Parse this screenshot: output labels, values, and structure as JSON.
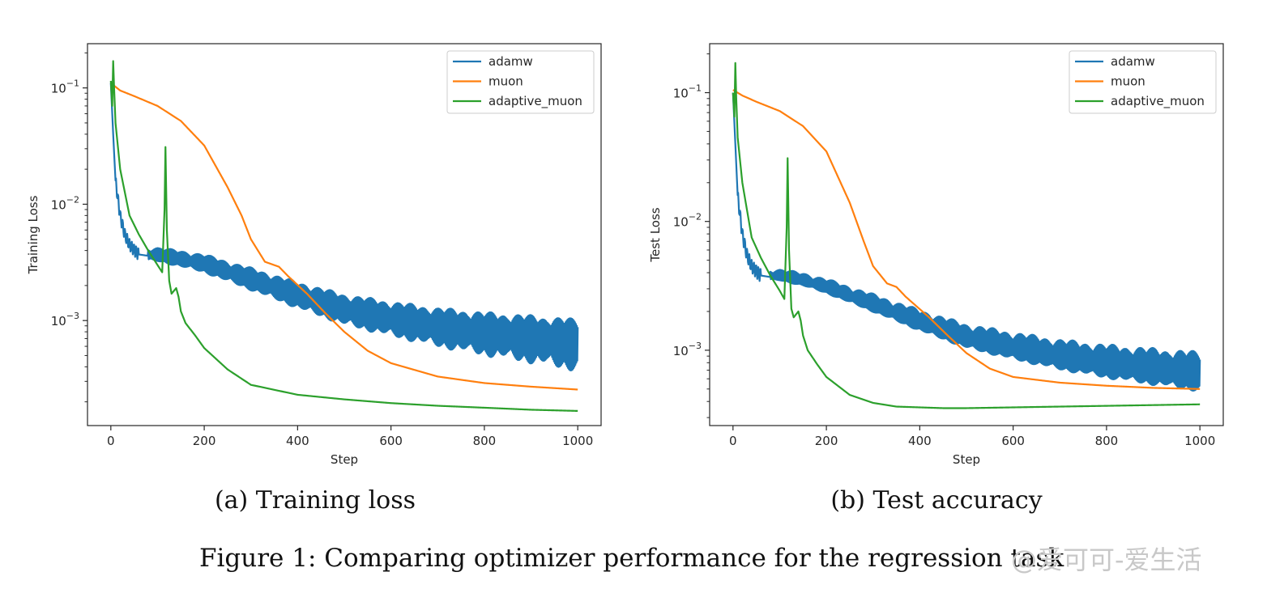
{
  "colors": {
    "adamw": "#1f77b4",
    "muon": "#ff7f0e",
    "adaptive_muon": "#2ca02c",
    "axis": "#262626",
    "legend_border": "#cccccc"
  },
  "chart_data": [
    {
      "type": "line",
      "subcaption": "(a) Training loss",
      "xlabel": "Step",
      "ylabel": "Training Loss",
      "yscale": "log",
      "xlim": [
        -50,
        1050
      ],
      "ylim": [
        0.000125,
        0.24
      ],
      "x_ticks": [
        0,
        200,
        400,
        600,
        800,
        1000
      ],
      "x_tick_labels": [
        "0",
        "200",
        "400",
        "600",
        "800",
        "1000"
      ],
      "y_ticks": [
        0.001,
        0.01,
        0.1
      ],
      "y_tick_labels": [
        {
          "base": "10",
          "exp": "−3"
        },
        {
          "base": "10",
          "exp": "−2"
        },
        {
          "base": "10",
          "exp": "−1"
        }
      ],
      "legend_position": "top-right",
      "grid": false,
      "series": [
        {
          "name": "adamw",
          "x": [
            0,
            5,
            10,
            20,
            30,
            40,
            60,
            80,
            100,
            150,
            200,
            300,
            400,
            500,
            600,
            700,
            800,
            900,
            1000
          ],
          "y": [
            0.11,
            0.04,
            0.016,
            0.008,
            0.0055,
            0.0045,
            0.0037,
            0.0036,
            0.0036,
            0.0033,
            0.003,
            0.0022,
            0.0016,
            0.0012,
            0.001,
            0.00085,
            0.00075,
            0.00068,
            0.00061
          ],
          "oscillation": {
            "start": 80,
            "peak_ratio": 1.6,
            "trough_ratio": 0.65
          }
        },
        {
          "name": "muon",
          "x": [
            0,
            20,
            50,
            100,
            150,
            200,
            250,
            280,
            300,
            330,
            360,
            380,
            420,
            460,
            500,
            550,
            600,
            700,
            800,
            900,
            1000
          ],
          "y": [
            0.11,
            0.095,
            0.085,
            0.07,
            0.052,
            0.032,
            0.014,
            0.008,
            0.005,
            0.0032,
            0.0029,
            0.0024,
            0.0017,
            0.00115,
            0.0008,
            0.00055,
            0.00043,
            0.00033,
            0.00029,
            0.00027,
            0.000255
          ]
        },
        {
          "name": "adaptive_muon",
          "x": [
            0,
            3,
            5,
            7,
            10,
            20,
            40,
            60,
            80,
            100,
            110,
            115,
            117,
            120,
            125,
            130,
            140,
            145,
            150,
            160,
            180,
            200,
            250,
            300,
            400,
            500,
            600,
            700,
            800,
            900,
            1000
          ],
          "y": [
            0.115,
            0.07,
            0.17,
            0.1,
            0.05,
            0.02,
            0.008,
            0.0055,
            0.004,
            0.003,
            0.0026,
            0.009,
            0.031,
            0.006,
            0.0022,
            0.0017,
            0.0019,
            0.0016,
            0.0012,
            0.00095,
            0.00075,
            0.00058,
            0.00038,
            0.00028,
            0.00023,
            0.00021,
            0.000195,
            0.000185,
            0.000178,
            0.000171,
            0.000167
          ]
        }
      ]
    },
    {
      "type": "line",
      "subcaption": "(b) Test accuracy",
      "xlabel": "Step",
      "ylabel": "Test Loss",
      "yscale": "log",
      "xlim": [
        -50,
        1050
      ],
      "ylim": [
        0.00026,
        0.24
      ],
      "x_ticks": [
        0,
        200,
        400,
        600,
        800,
        1000
      ],
      "x_tick_labels": [
        "0",
        "200",
        "400",
        "600",
        "800",
        "1000"
      ],
      "y_ticks": [
        0.001,
        0.01,
        0.1
      ],
      "y_tick_labels": [
        {
          "base": "10",
          "exp": "−3"
        },
        {
          "base": "10",
          "exp": "−2"
        },
        {
          "base": "10",
          "exp": "−1"
        }
      ],
      "legend_position": "top-right",
      "grid": false,
      "series": [
        {
          "name": "adamw",
          "x": [
            0,
            5,
            10,
            20,
            30,
            40,
            60,
            80,
            100,
            150,
            200,
            300,
            400,
            500,
            600,
            700,
            800,
            900,
            1000
          ],
          "y": [
            0.1,
            0.04,
            0.016,
            0.008,
            0.0055,
            0.0045,
            0.0038,
            0.0037,
            0.0037,
            0.0034,
            0.003,
            0.0022,
            0.0016,
            0.0012,
            0.001,
            0.00085,
            0.00075,
            0.00068,
            0.00062
          ],
          "oscillation": {
            "start": 80,
            "peak_ratio": 1.5,
            "trough_ratio": 0.8
          }
        },
        {
          "name": "muon",
          "x": [
            0,
            20,
            50,
            100,
            150,
            200,
            250,
            280,
            300,
            330,
            350,
            370,
            420,
            460,
            500,
            550,
            600,
            700,
            800,
            900,
            1000
          ],
          "y": [
            0.105,
            0.095,
            0.085,
            0.072,
            0.055,
            0.035,
            0.014,
            0.007,
            0.0045,
            0.0033,
            0.0031,
            0.0026,
            0.0018,
            0.0013,
            0.00095,
            0.00072,
            0.00062,
            0.00056,
            0.00053,
            0.00051,
            0.0005
          ]
        },
        {
          "name": "adaptive_muon",
          "x": [
            0,
            3,
            5,
            7,
            10,
            20,
            40,
            60,
            80,
            100,
            110,
            115,
            117,
            120,
            125,
            130,
            140,
            145,
            150,
            160,
            180,
            200,
            250,
            300,
            350,
            400,
            450,
            500,
            600,
            700,
            800,
            900,
            1000
          ],
          "y": [
            0.1,
            0.065,
            0.17,
            0.09,
            0.045,
            0.02,
            0.0075,
            0.0052,
            0.0038,
            0.0029,
            0.0025,
            0.009,
            0.031,
            0.006,
            0.0021,
            0.0018,
            0.002,
            0.0017,
            0.0013,
            0.001,
            0.00078,
            0.00062,
            0.00045,
            0.00039,
            0.000365,
            0.00036,
            0.000355,
            0.000355,
            0.00036,
            0.000365,
            0.00037,
            0.000375,
            0.00038
          ]
        }
      ]
    }
  ],
  "figure_caption": "Figure 1: Comparing optimizer performance for the regression task",
  "watermark": "@爱可可-爱生活"
}
